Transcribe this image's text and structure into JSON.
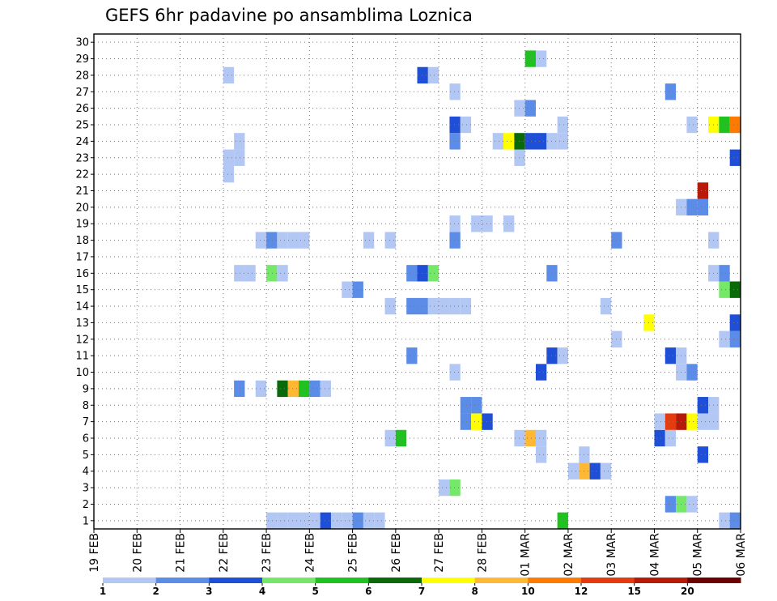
{
  "chart_data": {
    "type": "heatmap",
    "title": "GEFS 6hr padavine po ansamblima Loznica",
    "xlabel": "",
    "ylabel": "",
    "x_tick_labels": [
      "19 FEB",
      "20 FEB",
      "21 FEB",
      "22 FEB",
      "23 FEB",
      "24 FEB",
      "25 FEB",
      "26 FEB",
      "27 FEB",
      "28 FEB",
      "01 MAR",
      "02 MAR",
      "03 MAR",
      "04 MAR",
      "05 MAR",
      "06 MAR"
    ],
    "y_tick_labels": [
      "1",
      "2",
      "3",
      "4",
      "5",
      "6",
      "7",
      "8",
      "9",
      "10",
      "11",
      "12",
      "13",
      "14",
      "15",
      "16",
      "17",
      "18",
      "19",
      "20",
      "21",
      "22",
      "23",
      "24",
      "25",
      "26",
      "27",
      "28",
      "29",
      "30"
    ],
    "xlim": [
      0,
      60
    ],
    "ylim": [
      0.5,
      30.5
    ],
    "x_unit": "6-hour steps from 19 FEB 00Z",
    "grid": true,
    "color_levels": [
      1,
      2,
      3,
      4,
      5,
      6,
      7,
      8,
      10,
      12,
      15,
      20
    ],
    "colorbar_labels": [
      "1",
      "2",
      "3",
      "4",
      "5",
      "6",
      "7",
      "8",
      "10",
      "12",
      "15",
      "20"
    ],
    "colors": [
      "#b3c7f5",
      "#5b8de8",
      "#1e4fd6",
      "#75e86a",
      "#1fc21f",
      "#0a6a0a",
      "#ffff00",
      "#ffb833",
      "#ff7a00",
      "#e63b0f",
      "#b81a0a",
      "#6e0000"
    ],
    "cells": [
      [
        17,
        1,
        1
      ],
      [
        18,
        1,
        1
      ],
      [
        19,
        1,
        1
      ],
      [
        20,
        1,
        1
      ],
      [
        21,
        1,
        1
      ],
      [
        22,
        1,
        3
      ],
      [
        23,
        1,
        1
      ],
      [
        24,
        1,
        1
      ],
      [
        25,
        1,
        2
      ],
      [
        26,
        1,
        1
      ],
      [
        27,
        1,
        1
      ],
      [
        44,
        1,
        5
      ],
      [
        59,
        1,
        1
      ],
      [
        60,
        1,
        2
      ],
      [
        54,
        2,
        2
      ],
      [
        55,
        2,
        4
      ],
      [
        56,
        2,
        1
      ],
      [
        33,
        3,
        1
      ],
      [
        34,
        3,
        4
      ],
      [
        45,
        4,
        1
      ],
      [
        46,
        4,
        8
      ],
      [
        47,
        4,
        3
      ],
      [
        48,
        4,
        1
      ],
      [
        42,
        5,
        1
      ],
      [
        46,
        5,
        1
      ],
      [
        57,
        5,
        3
      ],
      [
        28,
        6,
        1
      ],
      [
        29,
        6,
        5
      ],
      [
        40,
        6,
        1
      ],
      [
        41,
        6,
        8
      ],
      [
        42,
        6,
        1
      ],
      [
        53,
        6,
        3
      ],
      [
        54,
        6,
        1
      ],
      [
        35,
        7,
        2
      ],
      [
        36,
        7,
        7
      ],
      [
        37,
        7,
        3
      ],
      [
        53,
        7,
        1
      ],
      [
        54,
        7,
        10
      ],
      [
        55,
        7,
        11
      ],
      [
        56,
        7,
        7
      ],
      [
        57,
        7,
        1
      ],
      [
        58,
        7,
        1
      ],
      [
        35,
        8,
        2
      ],
      [
        36,
        8,
        2
      ],
      [
        57,
        8,
        3
      ],
      [
        58,
        8,
        1
      ],
      [
        14,
        9,
        2
      ],
      [
        16,
        9,
        1
      ],
      [
        18,
        9,
        6
      ],
      [
        19,
        9,
        8
      ],
      [
        20,
        9,
        5
      ],
      [
        21,
        9,
        2
      ],
      [
        22,
        9,
        1
      ],
      [
        34,
        10,
        1
      ],
      [
        42,
        10,
        3
      ],
      [
        55,
        10,
        1
      ],
      [
        56,
        10,
        2
      ],
      [
        30,
        11,
        2
      ],
      [
        43,
        11,
        3
      ],
      [
        44,
        11,
        1
      ],
      [
        54,
        11,
        3
      ],
      [
        55,
        11,
        1
      ],
      [
        49,
        12,
        1
      ],
      [
        59,
        12,
        1
      ],
      [
        60,
        12,
        2
      ],
      [
        52,
        13,
        7
      ],
      [
        60,
        13,
        3
      ],
      [
        28,
        14,
        1
      ],
      [
        30,
        14,
        2
      ],
      [
        31,
        14,
        2
      ],
      [
        32,
        14,
        1
      ],
      [
        33,
        14,
        1
      ],
      [
        34,
        14,
        1
      ],
      [
        35,
        14,
        1
      ],
      [
        48,
        14,
        1
      ],
      [
        24,
        15,
        1
      ],
      [
        25,
        15,
        2
      ],
      [
        59,
        15,
        4
      ],
      [
        60,
        15,
        6
      ],
      [
        14,
        16,
        1
      ],
      [
        15,
        16,
        1
      ],
      [
        17,
        16,
        4
      ],
      [
        18,
        16,
        1
      ],
      [
        30,
        16,
        2
      ],
      [
        31,
        16,
        3
      ],
      [
        32,
        16,
        4
      ],
      [
        43,
        16,
        2
      ],
      [
        58,
        16,
        1
      ],
      [
        59,
        16,
        2
      ],
      [
        16,
        18,
        1
      ],
      [
        17,
        18,
        2
      ],
      [
        18,
        18,
        1
      ],
      [
        19,
        18,
        1
      ],
      [
        20,
        18,
        1
      ],
      [
        26,
        18,
        1
      ],
      [
        28,
        18,
        1
      ],
      [
        34,
        18,
        2
      ],
      [
        49,
        18,
        2
      ],
      [
        58,
        18,
        1
      ],
      [
        34,
        19,
        1
      ],
      [
        36,
        19,
        1
      ],
      [
        37,
        19,
        1
      ],
      [
        39,
        19,
        1
      ],
      [
        55,
        20,
        1
      ],
      [
        56,
        20,
        2
      ],
      [
        57,
        20,
        2
      ],
      [
        57,
        21,
        11
      ],
      [
        13,
        22,
        1
      ],
      [
        13,
        23,
        1
      ],
      [
        14,
        23,
        1
      ],
      [
        40,
        23,
        1
      ],
      [
        60,
        23,
        3
      ],
      [
        61,
        23,
        6
      ],
      [
        14,
        24,
        1
      ],
      [
        34,
        24,
        2
      ],
      [
        38,
        24,
        1
      ],
      [
        39,
        24,
        7
      ],
      [
        40,
        24,
        6
      ],
      [
        41,
        24,
        3
      ],
      [
        42,
        24,
        3
      ],
      [
        43,
        24,
        1
      ],
      [
        44,
        24,
        1
      ],
      [
        34,
        25,
        3
      ],
      [
        35,
        25,
        1
      ],
      [
        44,
        25,
        1
      ],
      [
        56,
        25,
        1
      ],
      [
        58,
        25,
        7
      ],
      [
        59,
        25,
        5
      ],
      [
        60,
        25,
        9
      ],
      [
        61,
        25,
        1
      ],
      [
        40,
        26,
        1
      ],
      [
        41,
        26,
        2
      ],
      [
        34,
        27,
        1
      ],
      [
        54,
        27,
        2
      ],
      [
        13,
        28,
        1
      ],
      [
        31,
        28,
        3
      ],
      [
        32,
        28,
        1
      ],
      [
        41,
        29,
        5
      ],
      [
        42,
        29,
        1
      ]
    ]
  }
}
